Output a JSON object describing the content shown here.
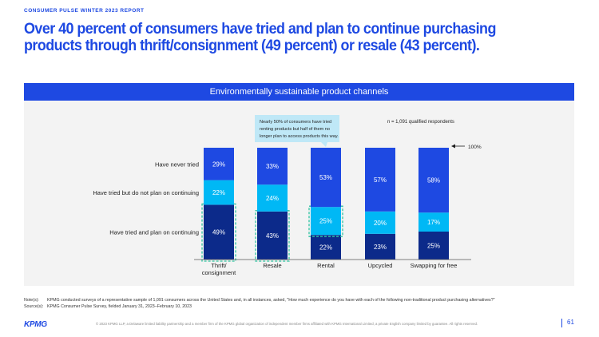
{
  "header": {
    "kicker": "CONSUMER PULSE WINTER 2023 REPORT",
    "headline": "Over 40 percent of consumers have tried and plan to continue purchasing products through thrift/consignment (49 percent) or resale (43 percent)."
  },
  "panel": {
    "title": "Environmentally sustainable product channels",
    "sample_note": "n = 1,091 qualified respondents",
    "callout": [
      "Nearly 50% of consumers have tried",
      "renting products but half of them no",
      "longer plan to access products this way."
    ],
    "hundred_marker": "100%"
  },
  "colors": {
    "never": "#1e49e2",
    "not_continue": "#00b8f5",
    "continue": "#0c2a8a",
    "brand": "#1e49e2",
    "callout_bg": "#bfe8f7",
    "highlight_border": "#2fc4a2"
  },
  "chart_data": {
    "type": "bar",
    "stacked": true,
    "categories": [
      [
        "Thrift/",
        "consignment"
      ],
      [
        "Resale"
      ],
      [
        "Rental"
      ],
      [
        "Upcycled"
      ],
      [
        "Swapping for free"
      ]
    ],
    "series": [
      {
        "name": "Have tried and plan on continuing",
        "values": [
          49,
          43,
          22,
          23,
          25
        ],
        "labels": [
          "49%",
          "43%",
          "22%",
          "23%",
          "25%"
        ]
      },
      {
        "name": "Have tried but do not plan on continuing",
        "values": [
          22,
          24,
          25,
          20,
          17
        ],
        "labels": [
          "22%",
          "24%",
          "25%",
          "20%",
          "17%"
        ]
      },
      {
        "name": "Have never tried",
        "values": [
          29,
          33,
          53,
          57,
          58
        ],
        "labels": [
          "29%",
          "33%",
          "53%",
          "57%",
          "58%"
        ]
      }
    ],
    "ylim": [
      0,
      100
    ],
    "highlighted": [
      "continue:0",
      "continue:1",
      "not_continue:2"
    ]
  },
  "footer": {
    "note_key": "Note(s):",
    "note_text": "KPMG conducted surveys of a representative sample of 1,091 consumers across the United States and, in all instances, asked, \"How much experience do you have with each of the following non-traditional product purchasing alternatives?\"",
    "source_key": "Source(s):",
    "source_text": "KPMG Consumer Pulse Survey, fielded January 31, 2023–February 10, 2023",
    "logo": "KPMG",
    "legal": "© 2023 KPMG LLP, a Delaware limited liability partnership and a member firm of the KPMG global organization of independent member firms affiliated with KPMG International Limited, a private English company limited by guarantee. All rights reserved.",
    "page_number": "61"
  }
}
